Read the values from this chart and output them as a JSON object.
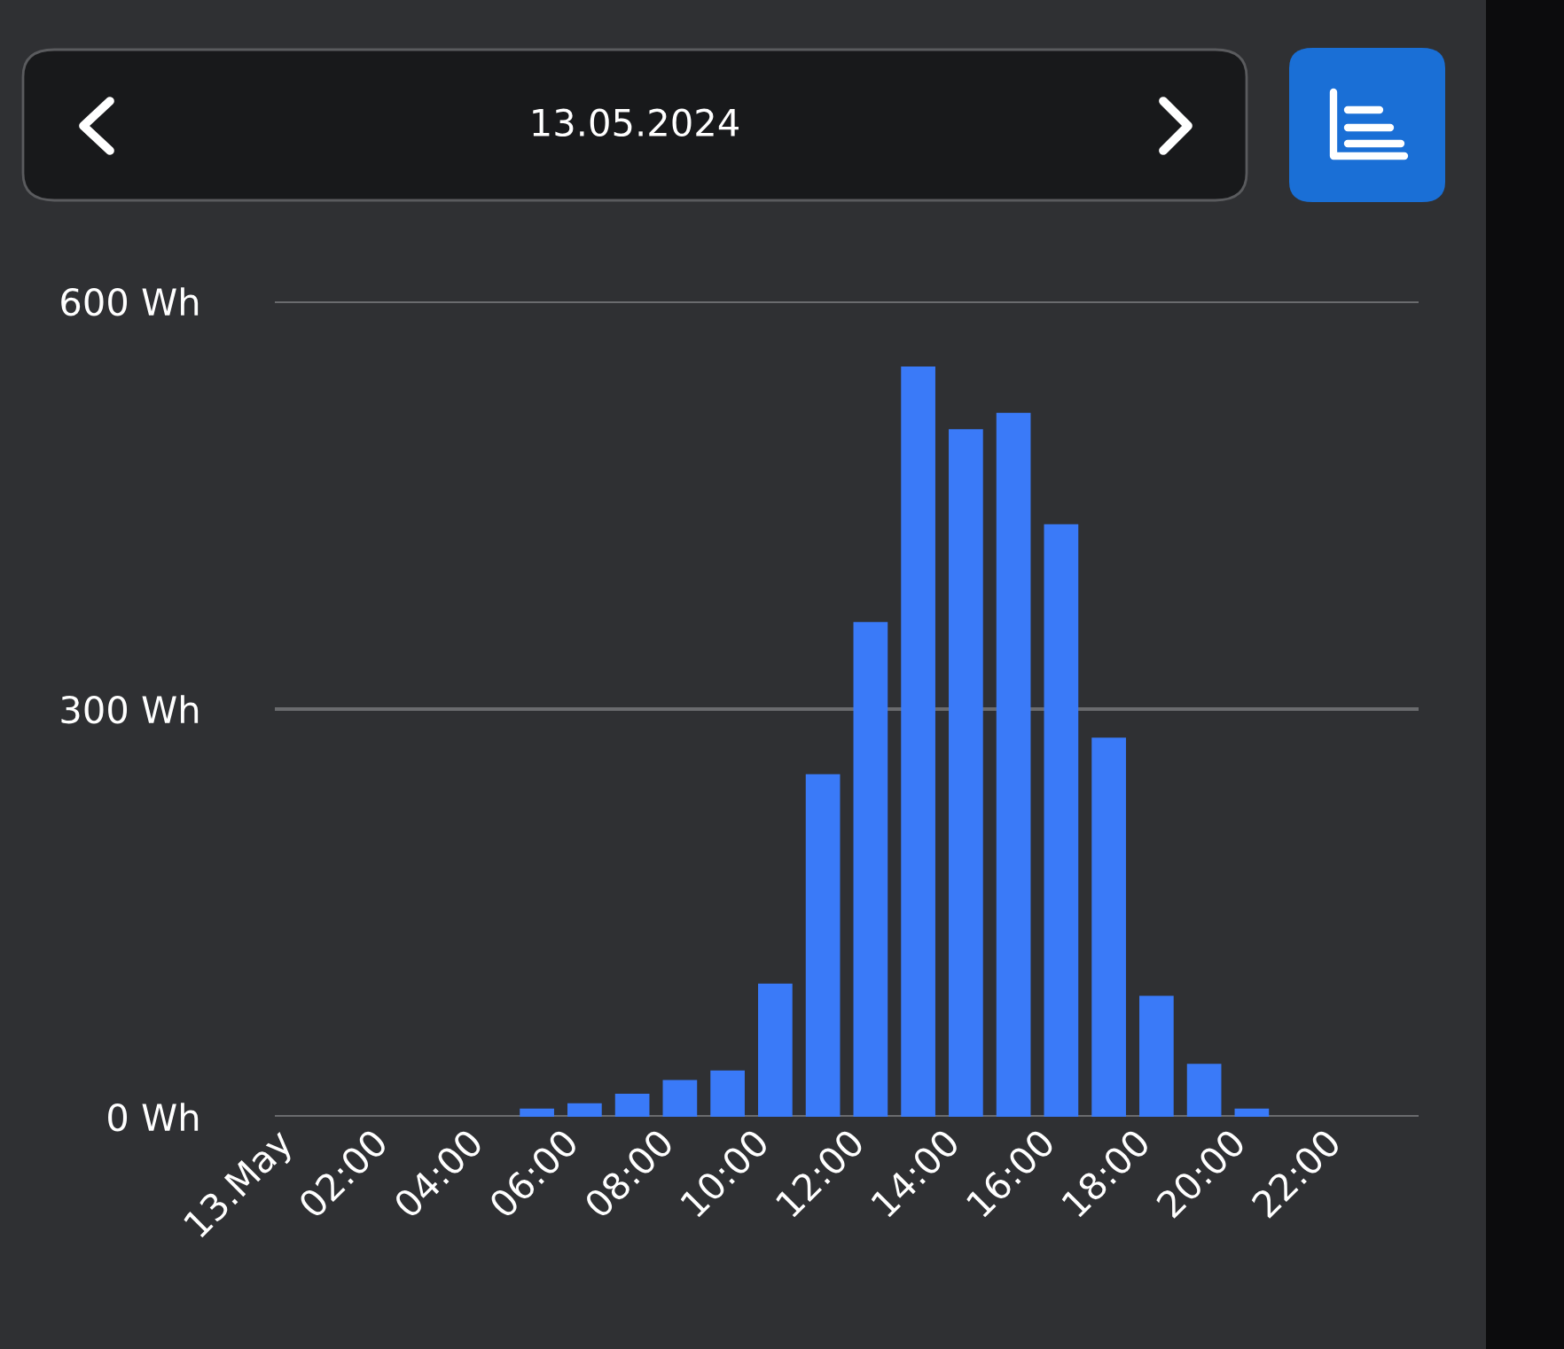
{
  "chart_data": {
    "type": "bar",
    "title": "13.05.2024",
    "x": [
      5.5,
      6.5,
      7.5,
      8.5,
      9.5,
      10.5,
      11.5,
      12.5,
      13.5,
      14.5,
      15.5,
      16.5,
      17.5,
      18.5,
      19.5,
      20.5
    ],
    "values": [
      6,
      10,
      17,
      27,
      34,
      98,
      252,
      364,
      552,
      506,
      518,
      436,
      279,
      89,
      39,
      6
    ],
    "color": "#3a7af8",
    "xlim": [
      0,
      24
    ],
    "xticks": [
      {
        "value": 0,
        "label": "13.May"
      },
      {
        "value": 2,
        "label": "02:00"
      },
      {
        "value": 4,
        "label": "04:00"
      },
      {
        "value": 6,
        "label": "06:00"
      },
      {
        "value": 8,
        "label": "08:00"
      },
      {
        "value": 10,
        "label": "10:00"
      },
      {
        "value": 12,
        "label": "12:00"
      },
      {
        "value": 14,
        "label": "14:00"
      },
      {
        "value": 16,
        "label": "16:00"
      },
      {
        "value": 18,
        "label": "18:00"
      },
      {
        "value": 20,
        "label": "20:00"
      },
      {
        "value": 22,
        "label": "22:00"
      }
    ],
    "ylim": [
      0,
      600
    ],
    "yticks": [
      {
        "value": 0,
        "label": "0 Wh"
      },
      {
        "value": 300,
        "label": "300 Wh"
      },
      {
        "value": 600,
        "label": "600 Wh"
      }
    ],
    "grid": "y"
  }
}
